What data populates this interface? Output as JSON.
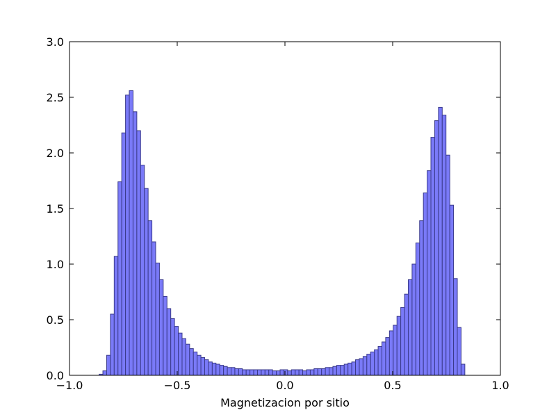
{
  "chart_data": {
    "type": "bar",
    "title": "",
    "xlabel": "Magnetizacion por sitio",
    "ylabel": "",
    "xlim": [
      -1.0,
      1.0
    ],
    "ylim": [
      0.0,
      3.0
    ],
    "grid": false,
    "bar_color": "#7a7af8",
    "bar_edge_color": "#3a3a8a",
    "xticks": [
      -1.0,
      -0.5,
      0.0,
      0.5,
      1.0
    ],
    "xtick_labels": [
      "−1.0",
      "−0.5",
      "0.0",
      "0.5",
      "1.0"
    ],
    "yticks": [
      0.0,
      0.5,
      1.0,
      1.5,
      2.0,
      2.5,
      3.0
    ],
    "ytick_labels": [
      "0.0",
      "0.5",
      "1.0",
      "1.5",
      "2.0",
      "2.5",
      "3.0"
    ],
    "bin_start": -0.8625,
    "bin_width": 0.0175,
    "values": [
      0.01,
      0.04,
      0.18,
      0.55,
      1.07,
      1.74,
      2.18,
      2.52,
      2.56,
      2.37,
      2.2,
      1.89,
      1.68,
      1.39,
      1.2,
      1.01,
      0.86,
      0.71,
      0.6,
      0.51,
      0.44,
      0.38,
      0.33,
      0.28,
      0.24,
      0.21,
      0.18,
      0.16,
      0.14,
      0.12,
      0.11,
      0.1,
      0.09,
      0.08,
      0.07,
      0.07,
      0.06,
      0.06,
      0.05,
      0.05,
      0.05,
      0.05,
      0.05,
      0.05,
      0.05,
      0.05,
      0.04,
      0.04,
      0.05,
      0.05,
      0.04,
      0.05,
      0.05,
      0.05,
      0.04,
      0.05,
      0.05,
      0.06,
      0.06,
      0.06,
      0.07,
      0.07,
      0.08,
      0.09,
      0.09,
      0.1,
      0.11,
      0.12,
      0.14,
      0.15,
      0.17,
      0.19,
      0.21,
      0.23,
      0.26,
      0.3,
      0.34,
      0.4,
      0.45,
      0.53,
      0.61,
      0.73,
      0.86,
      1.0,
      1.19,
      1.39,
      1.64,
      1.84,
      2.14,
      2.29,
      2.41,
      2.34,
      1.98,
      1.53,
      0.87,
      0.43,
      0.1
    ]
  }
}
